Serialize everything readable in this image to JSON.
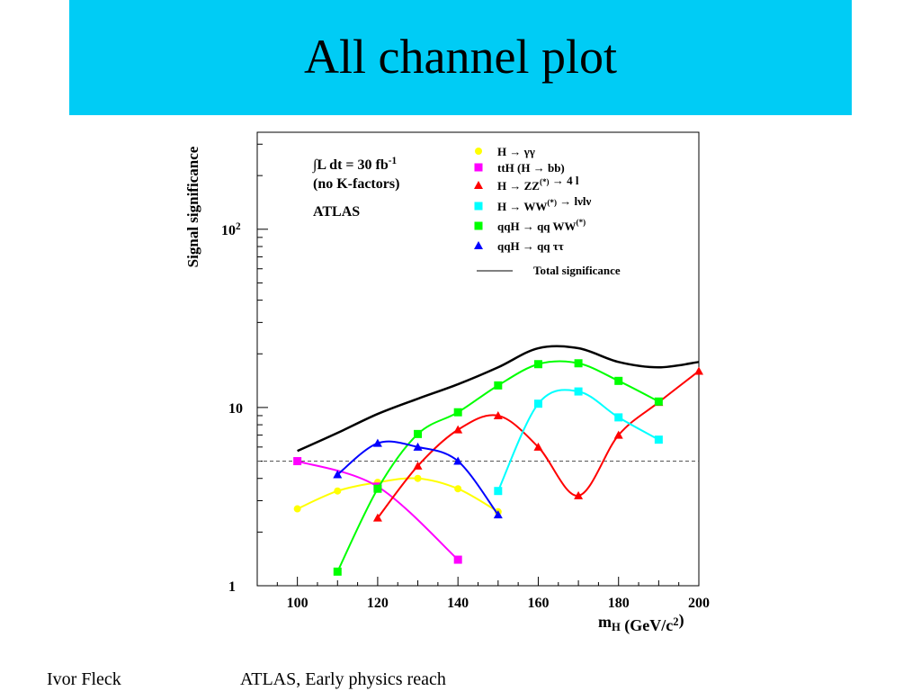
{
  "slide": {
    "title": "All channel plot",
    "footer_left": "Ivor Fleck",
    "footer_center": "ATLAS, Early physics reach",
    "title_bar_color": "#00ccf5"
  },
  "chart_data": {
    "type": "line",
    "xlabel": "m",
    "xlabel_sub": "H",
    "xlabel_unit": "(GeV/c",
    "xlabel_unit_sup": "2",
    "xlabel_unit_end": ")",
    "ylabel": "Signal significance",
    "xlim": [
      90,
      200
    ],
    "ylim": [
      1,
      350
    ],
    "yscale": "log",
    "x_ticks": [
      100,
      120,
      140,
      160,
      180,
      200
    ],
    "y_tick_labels": [
      {
        "value": 1,
        "base": "1",
        "exp": ""
      },
      {
        "value": 10,
        "base": "10",
        "exp": ""
      },
      {
        "value": 100,
        "base": "10",
        "exp": "2"
      }
    ],
    "annotation": {
      "lumi_prefix": "∫L dt = 30 fb",
      "lumi_sup": "-1",
      "line2": "(no K-factors)",
      "line3": "ATLAS"
    },
    "reference_line": {
      "y": 5,
      "style": "dashed"
    },
    "legend_position": "top-right",
    "series": [
      {
        "name": "H → γγ",
        "color": "#ffff00",
        "marker": "circle",
        "x": [
          100,
          110,
          120,
          130,
          140,
          150
        ],
        "y": [
          2.7,
          3.4,
          3.8,
          4.0,
          3.5,
          2.6
        ]
      },
      {
        "name": "ttH (H → bb)",
        "color": "#ff00ff",
        "marker": "square",
        "x": [
          100,
          120,
          140
        ],
        "y": [
          5.0,
          3.6,
          1.4
        ]
      },
      {
        "name": "H → ZZ(*) → 4 l",
        "color": "#ff0000",
        "marker": "triangle",
        "x": [
          120,
          130,
          140,
          150,
          160,
          170,
          180,
          190,
          200
        ],
        "y": [
          2.4,
          4.7,
          7.5,
          9.0,
          6.0,
          3.2,
          7.0,
          10.7,
          16.0
        ]
      },
      {
        "name": "H → WW(*) → lνlν",
        "color": "#00ffff",
        "marker": "square",
        "x": [
          150,
          160,
          170,
          180,
          190
        ],
        "y": [
          3.4,
          10.5,
          12.3,
          8.8,
          6.6
        ]
      },
      {
        "name": "qqH → qq WW(*)",
        "color": "#00ff00",
        "marker": "square",
        "x": [
          110,
          120,
          130,
          140,
          150,
          160,
          170,
          180,
          190
        ],
        "y": [
          1.2,
          3.5,
          7.1,
          9.4,
          13.3,
          17.5,
          17.7,
          14.1,
          10.8
        ]
      },
      {
        "name": "qqH → qq ττ",
        "color": "#0000ff",
        "marker": "triangle",
        "x": [
          110,
          120,
          130,
          140,
          150
        ],
        "y": [
          4.2,
          6.3,
          6.0,
          5.0,
          2.5
        ]
      },
      {
        "name": "Total significance",
        "color": "#000000",
        "marker": "none",
        "x": [
          100,
          110,
          120,
          130,
          140,
          150,
          160,
          170,
          180,
          190,
          200
        ],
        "y": [
          5.7,
          7.2,
          9.2,
          11.2,
          13.5,
          16.8,
          21.5,
          21.5,
          18.0,
          16.8,
          18.0
        ]
      }
    ],
    "legend_labels": [
      {
        "series": 0,
        "parts": [
          {
            "t": "H  →  γγ"
          }
        ]
      },
      {
        "series": 1,
        "parts": [
          {
            "t": "ttH (H  →  bb)"
          }
        ]
      },
      {
        "series": 2,
        "parts": [
          {
            "t": "H  →  ZZ"
          },
          {
            "t": "(*)",
            "sup": true
          },
          {
            "t": "  →  4 l"
          }
        ]
      },
      {
        "series": 3,
        "parts": [
          {
            "t": "H  →  WW"
          },
          {
            "t": "(*)",
            "sup": true
          },
          {
            "t": "  →  lνlν"
          }
        ]
      },
      {
        "series": 4,
        "parts": [
          {
            "t": "qqH  →  qq WW"
          },
          {
            "t": "(*)",
            "sup": true
          }
        ]
      },
      {
        "series": 5,
        "parts": [
          {
            "t": "qqH  →  qq ττ"
          }
        ]
      },
      {
        "series": 6,
        "parts": [
          {
            "t": "Total significance"
          }
        ]
      }
    ]
  }
}
